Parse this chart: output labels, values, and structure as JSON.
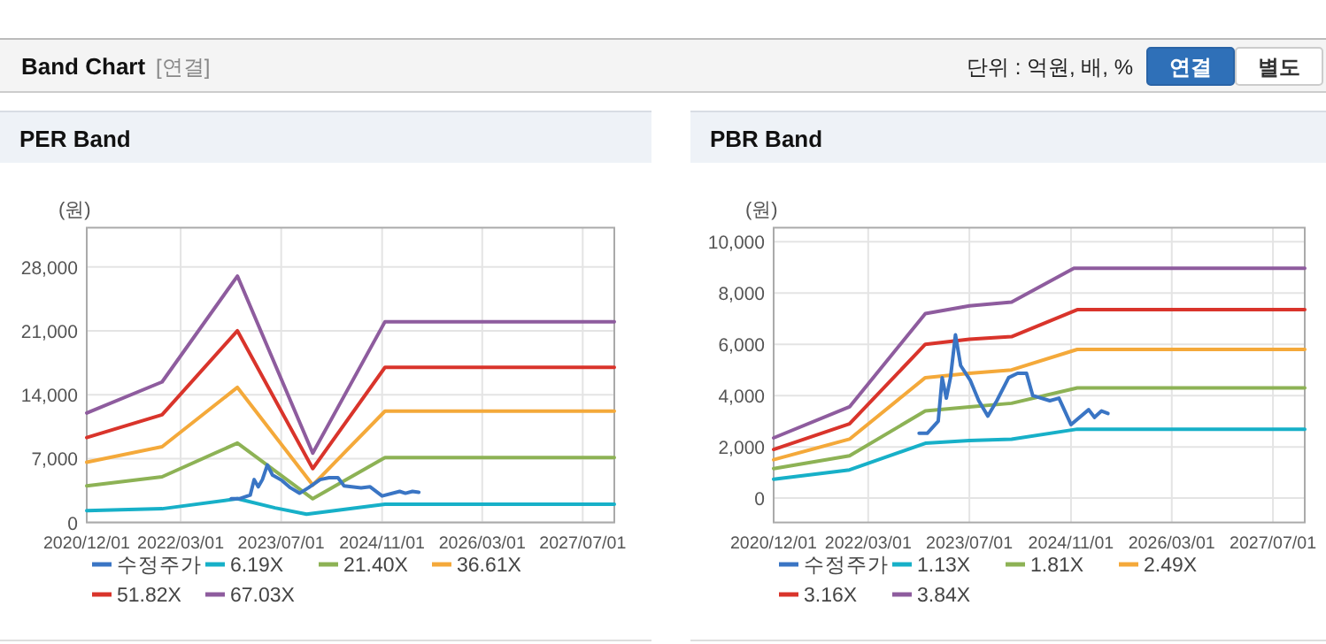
{
  "chart_data": [
    {
      "type": "other",
      "title": "Band Chart",
      "subtitle": "[연결]",
      "annotations": [
        "단위 : 억원, 배, %",
        "연결",
        "별도"
      ]
    },
    {
      "type": "line",
      "title": "PER Band",
      "ylabel": "(원)",
      "xlim": [
        "2020-12-01",
        "2027-12-01"
      ],
      "ylim": [
        0,
        32300
      ],
      "xticks": [
        {
          "value": "2020-12-01",
          "label": "2020/12/01"
        },
        {
          "value": "2022-03-01",
          "label": "2022/03/01"
        },
        {
          "value": "2023-07-01",
          "label": "2023/07/01"
        },
        {
          "value": "2024-11-01",
          "label": "2024/11/01"
        },
        {
          "value": "2026-03-01",
          "label": "2026/03/01"
        },
        {
          "value": "2027-07-01",
          "label": "2027/07/01"
        }
      ],
      "yticks": [
        0,
        {
          "value": 7000,
          "label": "7,000"
        },
        {
          "value": 14000,
          "label": "14,000"
        },
        {
          "value": 21000,
          "label": "21,000"
        },
        {
          "value": 28000,
          "label": "28,000"
        }
      ],
      "grid": true,
      "legend": "bottom",
      "marker": "none",
      "line_style": "solid",
      "series": [
        {
          "name": "수정주가",
          "color": "#3a75c4",
          "x": [
            "2022-11-01",
            "2022-12-10",
            "2023-02-01",
            "2023-02-20",
            "2023-03-12",
            "2023-04-01",
            "2023-04-25",
            "2023-05-20",
            "2023-07-05",
            "2023-08-15",
            "2023-09-28",
            "2023-11-10",
            "2024-01-06",
            "2024-02-18",
            "2024-04-01",
            "2024-05-01",
            "2024-07-22",
            "2024-09-04",
            "2024-11-01",
            "2025-01-25",
            "2025-02-22",
            "2025-03-28",
            "2025-04-28"
          ],
          "values": [
            2600,
            2600,
            3000,
            4700,
            3900,
            4700,
            6300,
            5200,
            4600,
            3800,
            3200,
            3800,
            4700,
            4900,
            4900,
            4000,
            3800,
            3900,
            2900,
            3400,
            3200,
            3400,
            3300
          ]
        },
        {
          "name": "6.19X",
          "color": "#17b0c8",
          "x": [
            "2020-12-01",
            "2021-12-01",
            "2022-12-01",
            "2023-06-01",
            "2023-11-01",
            "2024-11-15",
            "2027-12-01"
          ],
          "values": [
            1300,
            1500,
            2600,
            1600,
            900,
            2000,
            2000
          ]
        },
        {
          "name": "21.40X",
          "color": "#8db255",
          "x": [
            "2020-12-01",
            "2021-12-01",
            "2022-12-01",
            "2023-12-01",
            "2024-11-15",
            "2027-12-01"
          ],
          "values": [
            4000,
            5000,
            8700,
            2600,
            7100,
            7100
          ]
        },
        {
          "name": "36.61X",
          "color": "#f4a93a",
          "x": [
            "2020-12-01",
            "2021-12-01",
            "2022-12-01",
            "2023-12-01",
            "2024-11-15",
            "2027-12-01"
          ],
          "values": [
            6600,
            8300,
            14800,
            4100,
            12200,
            12200
          ]
        },
        {
          "name": "51.82X",
          "color": "#d9342b",
          "x": [
            "2020-12-01",
            "2021-12-01",
            "2022-12-01",
            "2023-12-01",
            "2024-11-15",
            "2027-12-01"
          ],
          "values": [
            9300,
            11800,
            21000,
            5900,
            17000,
            17000
          ]
        },
        {
          "name": "67.03X",
          "color": "#8e5c9e",
          "x": [
            "2020-12-01",
            "2021-12-01",
            "2022-12-01",
            "2023-12-01",
            "2024-11-15",
            "2027-12-01"
          ],
          "values": [
            12000,
            15400,
            27000,
            7600,
            22000,
            22000
          ]
        }
      ]
    },
    {
      "type": "line",
      "title": "PBR Band",
      "ylabel": "(원)",
      "xlim": [
        "2020-12-01",
        "2027-12-01"
      ],
      "ylim": [
        -950,
        10550
      ],
      "xticks": [
        {
          "value": "2020-12-01",
          "label": "2020/12/01"
        },
        {
          "value": "2022-03-01",
          "label": "2022/03/01"
        },
        {
          "value": "2023-07-01",
          "label": "2023/07/01"
        },
        {
          "value": "2024-11-01",
          "label": "2024/11/01"
        },
        {
          "value": "2026-03-01",
          "label": "2026/03/01"
        },
        {
          "value": "2027-07-01",
          "label": "2027/07/01"
        }
      ],
      "yticks": [
        0,
        {
          "value": 2000,
          "label": "2,000"
        },
        {
          "value": 4000,
          "label": "4,000"
        },
        {
          "value": 6000,
          "label": "6,000"
        },
        {
          "value": 8000,
          "label": "8,000"
        },
        {
          "value": 10000,
          "label": "10,000"
        }
      ],
      "grid": true,
      "legend": "bottom",
      "marker": "none",
      "line_style": "solid",
      "series": [
        {
          "name": "수정주가",
          "color": "#3a75c4",
          "x": [
            "2022-11-01",
            "2022-12-10",
            "2023-02-01",
            "2023-02-20",
            "2023-03-12",
            "2023-04-01",
            "2023-04-25",
            "2023-05-20",
            "2023-07-05",
            "2023-08-15",
            "2023-09-28",
            "2023-11-10",
            "2024-01-06",
            "2024-02-18",
            "2024-04-01",
            "2024-05-01",
            "2024-07-22",
            "2024-09-04",
            "2024-11-01",
            "2025-01-25",
            "2025-02-22",
            "2025-03-28",
            "2025-04-28"
          ],
          "values": [
            2530,
            2530,
            3000,
            4700,
            3900,
            4700,
            6370,
            5170,
            4600,
            3800,
            3200,
            3800,
            4700,
            4870,
            4870,
            4000,
            3800,
            3900,
            2870,
            3450,
            3150,
            3400,
            3300
          ]
        },
        {
          "name": "1.13X",
          "color": "#17b0c8",
          "x": [
            "2020-12-01",
            "2021-12-01",
            "2022-12-01",
            "2023-07-01",
            "2024-01-20",
            "2024-12-01",
            "2027-12-01"
          ],
          "values": [
            740,
            1100,
            2140,
            2250,
            2300,
            2690,
            2690
          ]
        },
        {
          "name": "1.81X",
          "color": "#8db255",
          "x": [
            "2020-12-01",
            "2021-12-01",
            "2022-12-01",
            "2023-07-01",
            "2024-01-20",
            "2024-12-01",
            "2027-12-01"
          ],
          "values": [
            1150,
            1650,
            3400,
            3560,
            3700,
            4300,
            4300
          ]
        },
        {
          "name": "2.49X",
          "color": "#f4a93a",
          "x": [
            "2020-12-01",
            "2021-12-01",
            "2022-12-01",
            "2023-07-01",
            "2024-01-20",
            "2024-12-01",
            "2027-12-01"
          ],
          "values": [
            1500,
            2300,
            4700,
            4870,
            5000,
            5800,
            5800
          ]
        },
        {
          "name": "3.16X",
          "color": "#d9342b",
          "x": [
            "2020-12-01",
            "2021-12-01",
            "2022-12-01",
            "2023-07-01",
            "2024-01-20",
            "2024-12-01",
            "2027-12-01"
          ],
          "values": [
            1900,
            2900,
            6000,
            6200,
            6300,
            7350,
            7350
          ]
        },
        {
          "name": "3.84X",
          "color": "#8e5c9e",
          "x": [
            "2020-12-01",
            "2021-12-01",
            "2022-12-01",
            "2023-07-01",
            "2024-01-20",
            "2024-11-15",
            "2027-12-01"
          ],
          "values": [
            2350,
            3560,
            7200,
            7500,
            7650,
            8970,
            8970
          ]
        }
      ]
    }
  ]
}
